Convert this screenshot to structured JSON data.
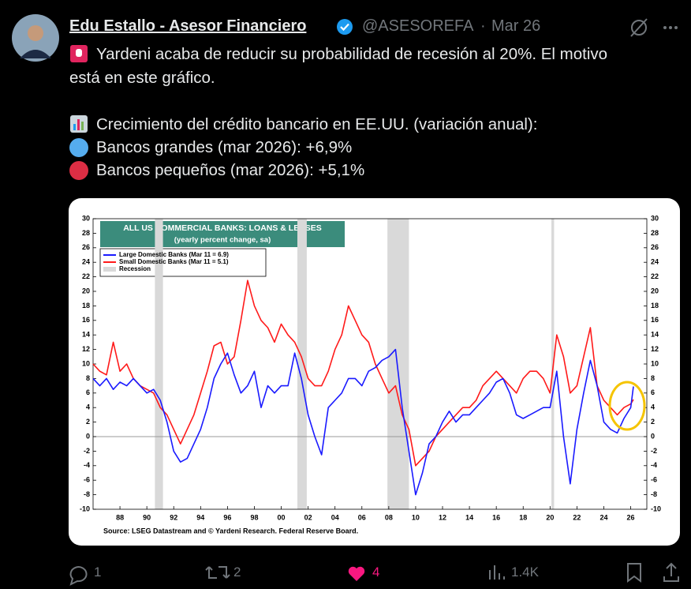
{
  "tweet": {
    "author_name": "Edu Estallo - Asesor Financiero",
    "handle": "@ASESOREFA",
    "separator": "·",
    "date": "Mar 26",
    "text_lines": [
      "Yardeni acaba de reducir su probabilidad de recesión al 20%. El motivo",
      "está en este gráfico.",
      "Crecimiento del crédito bancario en EE.UU. (variación anual):",
      "Bancos grandes (mar 2026): +6,9%",
      "Bancos pequeños (mar 2026): +5,1%"
    ],
    "actions": {
      "replies": "1",
      "reposts": "2",
      "likes": "4",
      "views": "1.4K"
    }
  },
  "chart_data": {
    "type": "line",
    "title": "ALL US COMMERCIAL BANKS: LOANS & LEASES",
    "subtitle": "(yearly percent change, sa)",
    "source": "Source: LSEG Datastream and © Yardeni Research. Federal Reserve Board.",
    "recession_label": "Recession",
    "recession_color": "#d9d9d9",
    "recessions": [
      [
        1990.6,
        1991.2
      ],
      [
        2001.2,
        2001.9
      ],
      [
        2007.9,
        2009.5
      ],
      [
        2020.1,
        2020.3
      ]
    ],
    "x": [
      1986,
      1986.5,
      1987,
      1987.5,
      1988,
      1988.5,
      1989,
      1989.5,
      1990,
      1990.5,
      1991,
      1991.5,
      1992,
      1992.5,
      1993,
      1993.5,
      1994,
      1994.5,
      1995,
      1995.5,
      1996,
      1996.5,
      1997,
      1997.5,
      1998,
      1998.5,
      1999,
      1999.5,
      2000,
      2000.5,
      2001,
      2001.5,
      2002,
      2002.5,
      2003,
      2003.5,
      2004,
      2004.5,
      2005,
      2005.5,
      2006,
      2006.5,
      2007,
      2007.5,
      2008,
      2008.5,
      2009,
      2009.5,
      2010,
      2010.5,
      2011,
      2011.5,
      2012,
      2012.5,
      2013,
      2013.5,
      2014,
      2014.5,
      2015,
      2015.5,
      2016,
      2016.5,
      2017,
      2017.5,
      2018,
      2018.5,
      2019,
      2019.5,
      2020,
      2020.5,
      2021,
      2021.5,
      2022,
      2022.5,
      2023,
      2023.5,
      2024,
      2024.5,
      2025,
      2025.5,
      2026,
      2026.2
    ],
    "series": [
      {
        "name": "Large Domestic Banks (Mar 11 = 6.9)",
        "color": "#1a1aff",
        "values": [
          8,
          7,
          8,
          6.5,
          7.5,
          7,
          8,
          7,
          6,
          6.5,
          5,
          2,
          -2,
          -3.5,
          -3,
          -1,
          1,
          4,
          8,
          10,
          11.5,
          8.5,
          6,
          7,
          9,
          4,
          7,
          6,
          7,
          7,
          11.5,
          8,
          3,
          0,
          -2.5,
          4,
          5,
          6,
          8,
          8,
          7,
          9,
          9.5,
          10.5,
          11,
          12,
          4,
          -2,
          -8,
          -5,
          -1,
          0,
          2,
          3.5,
          2,
          3,
          3,
          4,
          5,
          6,
          7.5,
          8,
          6,
          3,
          2.5,
          3,
          3.5,
          4,
          4,
          9,
          0,
          -6.5,
          1,
          6,
          10.5,
          7,
          2,
          1,
          0.5,
          2.5,
          4,
          6.9
        ]
      },
      {
        "name": "Small Domestic Banks (Mar 11 = 5.1)",
        "color": "#ff1a1a",
        "values": [
          10,
          9,
          8.5,
          13,
          9,
          10,
          8,
          7,
          6.5,
          6,
          4,
          3,
          1,
          -1,
          1,
          3,
          6,
          9,
          12.5,
          13,
          10,
          11,
          16,
          21.5,
          18,
          16,
          15,
          13,
          15.5,
          14,
          13,
          11,
          8,
          7,
          7,
          9,
          12,
          14,
          18,
          16,
          14,
          13,
          10,
          8,
          6,
          7,
          3,
          1,
          -4,
          -3,
          -2,
          0,
          1,
          2,
          3,
          4,
          4,
          5,
          7,
          8,
          9,
          8,
          7,
          6,
          8,
          9,
          9,
          8,
          6,
          14,
          11,
          6,
          7,
          11,
          15,
          7,
          5,
          4,
          3,
          4,
          4.5,
          5.1
        ]
      }
    ],
    "xlim": [
      1986,
      2027.2
    ],
    "xticks": [
      {
        "value": 1988,
        "label": "88"
      },
      {
        "value": 1990,
        "label": "90"
      },
      {
        "value": 1992,
        "label": "92"
      },
      {
        "value": 1994,
        "label": "94"
      },
      {
        "value": 1996,
        "label": "96"
      },
      {
        "value": 1998,
        "label": "98"
      },
      {
        "value": 2000,
        "label": "00"
      },
      {
        "value": 2002,
        "label": "02"
      },
      {
        "value": 2004,
        "label": "04"
      },
      {
        "value": 2006,
        "label": "06"
      },
      {
        "value": 2008,
        "label": "08"
      },
      {
        "value": 2010,
        "label": "10"
      },
      {
        "value": 2012,
        "label": "12"
      },
      {
        "value": 2014,
        "label": "14"
      },
      {
        "value": 2016,
        "label": "16"
      },
      {
        "value": 2018,
        "label": "18"
      },
      {
        "value": 2020,
        "label": "20"
      },
      {
        "value": 2022,
        "label": "22"
      },
      {
        "value": 2024,
        "label": "24"
      },
      {
        "value": 2026,
        "label": "26"
      }
    ],
    "ylim": [
      -10,
      30
    ],
    "yticks": [
      -10,
      -8,
      -6,
      -4,
      -2,
      0,
      2,
      4,
      6,
      8,
      10,
      12,
      14,
      16,
      18,
      20,
      22,
      24,
      26,
      28,
      30
    ]
  }
}
